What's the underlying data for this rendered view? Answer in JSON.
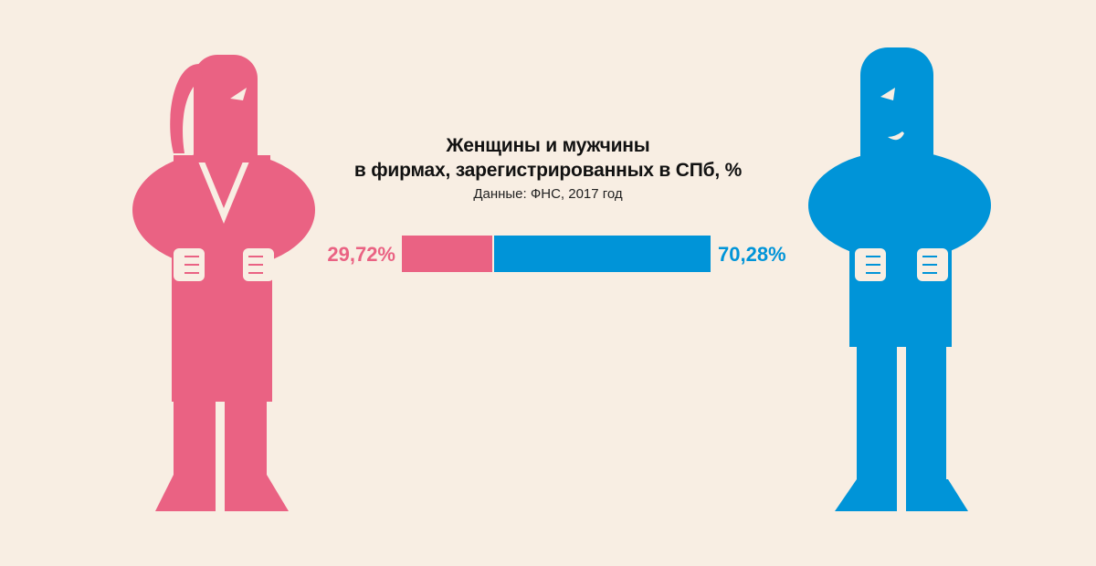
{
  "title_lines": [
    "Женщины и мужчины",
    "в фирмах, зарегистрированных в СПб, %"
  ],
  "subtitle": "Данные: ФНС, 2017 год",
  "colors": {
    "background": "#f8eee3",
    "women": "#ea6283",
    "men": "#0094d8"
  },
  "icons": {
    "left": "woman-figure-icon",
    "right": "man-figure-icon"
  },
  "chart_data": {
    "type": "bar",
    "orientation": "horizontal-stacked",
    "title": "Женщины и мужчины в фирмах, зарегистрированных в СПб, %",
    "subtitle": "Данные: ФНС, 2017 год",
    "series": [
      {
        "value": 29.72,
        "label": "29,72%",
        "color": "#ea6283"
      },
      {
        "value": 70.28,
        "label": "70,28%",
        "color": "#0094d8"
      }
    ],
    "total": 100
  }
}
